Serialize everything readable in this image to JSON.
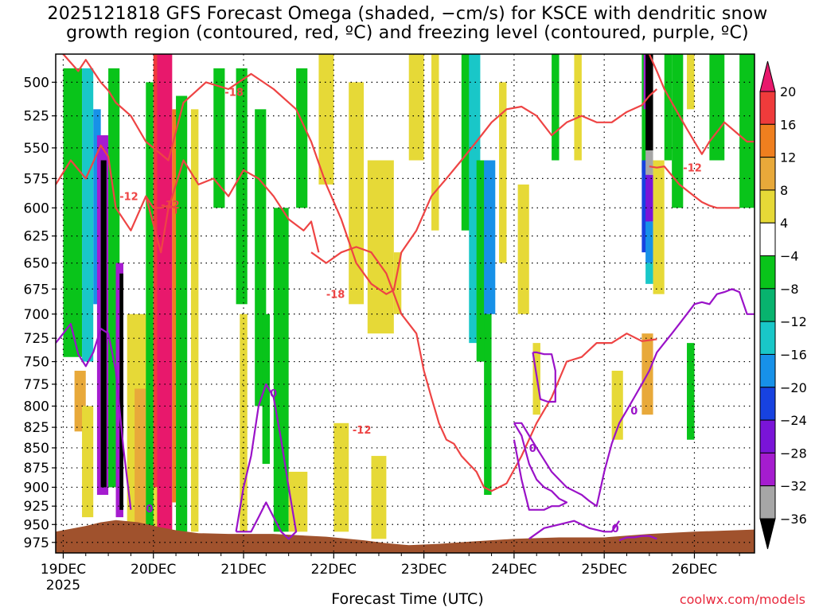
{
  "title": {
    "line1": "2025121818 GFS Forecast Omega (shaded, −cm/s) for KSCE with dendritic snow",
    "line2": "growth region (contoured, red, ºC) and freezing level (contoured, purple, ºC)"
  },
  "xlabel": "Forecast Time (UTC)",
  "credit": "coolwx.com/models",
  "chart_data": {
    "type": "heatmap",
    "title": "2025121818 GFS Forecast Omega (shaded, −cm/s) for KSCE with dendritic snow growth region (contoured, red, ºC) and freezing level (contoured, purple, ºC)",
    "xlabel": "Forecast Time (UTC)",
    "ylabel": "",
    "x_ticks": [
      "19DEC",
      "20DEC",
      "21DEC",
      "22DEC",
      "23DEC",
      "24DEC",
      "25DEC",
      "26DEC"
    ],
    "x_year_label": "2025",
    "x_range_hours": [
      -2,
      184
    ],
    "y_ticks": [
      500,
      525,
      550,
      575,
      600,
      625,
      650,
      675,
      700,
      725,
      750,
      775,
      800,
      825,
      850,
      875,
      900,
      925,
      950,
      975
    ],
    "y_range_hpa": [
      480,
      990
    ],
    "y_log": true,
    "grid": "dotted",
    "colorbar": {
      "levels": [
        -36,
        -32,
        -28,
        -24,
        -20,
        -16,
        -12,
        -8,
        -4,
        4,
        8,
        12,
        16,
        20
      ],
      "labels": [
        "20",
        "16",
        "12",
        "8",
        "4",
        "−4",
        "−8",
        "−12",
        "−16",
        "−20",
        "−24",
        "−28",
        "−32",
        "−36"
      ],
      "colors_top_to_bottom": [
        "#e8186c",
        "#ef3b3b",
        "#ef7f1f",
        "#e8a93a",
        "#e6d937",
        "#ffffff",
        "#09c41a",
        "#08b36e",
        "#19c7c8",
        "#1791e8",
        "#1742e0",
        "#7a14d8",
        "#a51ccf",
        "#a6a6a6",
        "#000000"
      ]
    },
    "omega_cells": [
      {
        "t0": 0,
        "t1": 5,
        "p0": 490,
        "p1": 745,
        "c": "#09c41a"
      },
      {
        "t0": 5,
        "t1": 8,
        "p0": 490,
        "p1": 750,
        "c": "#19c7c8"
      },
      {
        "t0": 8,
        "t1": 10,
        "p0": 520,
        "p1": 690,
        "c": "#1791e8"
      },
      {
        "t0": 9,
        "t1": 12,
        "p0": 540,
        "p1": 910,
        "c": "#a51ccf"
      },
      {
        "t0": 10,
        "t1": 11.5,
        "p0": 560,
        "p1": 900,
        "c": "#000000"
      },
      {
        "t0": 12,
        "t1": 15,
        "p0": 490,
        "p1": 900,
        "c": "#09c41a"
      },
      {
        "t0": 14,
        "t1": 16,
        "p0": 650,
        "p1": 940,
        "c": "#a51ccf"
      },
      {
        "t0": 15,
        "t1": 16,
        "p0": 660,
        "p1": 930,
        "c": "#000000"
      },
      {
        "t0": 3,
        "t1": 6,
        "p0": 760,
        "p1": 830,
        "c": "#e8a93a"
      },
      {
        "t0": 5,
        "t1": 8,
        "p0": 800,
        "p1": 940,
        "c": "#e6d937"
      },
      {
        "t0": 17,
        "t1": 26,
        "p0": 700,
        "p1": 960,
        "c": "#e6d937"
      },
      {
        "t0": 19,
        "t1": 22,
        "p0": 780,
        "p1": 950,
        "c": "#e8a93a"
      },
      {
        "t0": 22,
        "t1": 24,
        "p0": 500,
        "p1": 960,
        "c": "#09c41a"
      },
      {
        "t0": 24,
        "t1": 26,
        "p0": 480,
        "p1": 900,
        "c": "#ef3b3b"
      },
      {
        "t0": 25,
        "t1": 29,
        "p0": 480,
        "p1": 960,
        "c": "#e8186c"
      },
      {
        "t0": 29,
        "t1": 30,
        "p0": 520,
        "p1": 920,
        "c": "#ef7f1f"
      },
      {
        "t0": 30,
        "t1": 33,
        "p0": 510,
        "p1": 960,
        "c": "#09c41a"
      },
      {
        "t0": 34,
        "t1": 36,
        "p0": 520,
        "p1": 960,
        "c": "#e6d937"
      },
      {
        "t0": 40,
        "t1": 43,
        "p0": 490,
        "p1": 600,
        "c": "#09c41a"
      },
      {
        "t0": 46,
        "t1": 49,
        "p0": 490,
        "p1": 690,
        "c": "#09c41a"
      },
      {
        "t0": 47,
        "t1": 49,
        "p0": 700,
        "p1": 960,
        "c": "#e6d937"
      },
      {
        "t0": 51,
        "t1": 54,
        "p0": 520,
        "p1": 800,
        "c": "#09c41a"
      },
      {
        "t0": 53,
        "t1": 55,
        "p0": 700,
        "p1": 870,
        "c": "#09c41a"
      },
      {
        "t0": 56,
        "t1": 60,
        "p0": 600,
        "p1": 960,
        "c": "#09c41a"
      },
      {
        "t0": 60,
        "t1": 65,
        "p0": 880,
        "p1": 960,
        "c": "#e6d937"
      },
      {
        "t0": 62,
        "t1": 65,
        "p0": 490,
        "p1": 600,
        "c": "#09c41a"
      },
      {
        "t0": 68,
        "t1": 72,
        "p0": 480,
        "p1": 580,
        "c": "#e6d937"
      },
      {
        "t0": 72,
        "t1": 76,
        "p0": 820,
        "p1": 960,
        "c": "#e6d937"
      },
      {
        "t0": 76,
        "t1": 80,
        "p0": 500,
        "p1": 690,
        "c": "#e6d937"
      },
      {
        "t0": 81,
        "t1": 88,
        "p0": 560,
        "p1": 720,
        "c": "#e6d937"
      },
      {
        "t0": 82,
        "t1": 86,
        "p0": 860,
        "p1": 970,
        "c": "#e6d937"
      },
      {
        "t0": 88,
        "t1": 90,
        "p0": 640,
        "p1": 700,
        "c": "#e6d937"
      },
      {
        "t0": 92,
        "t1": 96,
        "p0": 480,
        "p1": 560,
        "c": "#e6d937"
      },
      {
        "t0": 98,
        "t1": 100,
        "p0": 480,
        "p1": 620,
        "c": "#e6d937"
      },
      {
        "t0": 106,
        "t1": 109,
        "p0": 480,
        "p1": 620,
        "c": "#09c41a"
      },
      {
        "t0": 108,
        "t1": 111,
        "p0": 480,
        "p1": 730,
        "c": "#19c7c8"
      },
      {
        "t0": 110,
        "t1": 113,
        "p0": 560,
        "p1": 750,
        "c": "#09c41a"
      },
      {
        "t0": 112,
        "t1": 115,
        "p0": 560,
        "p1": 700,
        "c": "#1791e8"
      },
      {
        "t0": 112,
        "t1": 114,
        "p0": 700,
        "p1": 910,
        "c": "#09c41a"
      },
      {
        "t0": 116,
        "t1": 118,
        "p0": 500,
        "p1": 650,
        "c": "#e6d937"
      },
      {
        "t0": 121,
        "t1": 124,
        "p0": 580,
        "p1": 700,
        "c": "#e6d937"
      },
      {
        "t0": 125,
        "t1": 127,
        "p0": 730,
        "p1": 810,
        "c": "#e6d937"
      },
      {
        "t0": 130,
        "t1": 132,
        "p0": 480,
        "p1": 560,
        "c": "#09c41a"
      },
      {
        "t0": 136,
        "t1": 138,
        "p0": 480,
        "p1": 560,
        "c": "#e6d937"
      },
      {
        "t0": 146,
        "t1": 149,
        "p0": 760,
        "p1": 840,
        "c": "#e6d937"
      },
      {
        "t0": 154,
        "t1": 156,
        "p0": 480,
        "p1": 570,
        "c": "#09c41a"
      },
      {
        "t0": 154,
        "t1": 156,
        "p0": 560,
        "p1": 640,
        "c": "#1742e0"
      },
      {
        "t0": 154.5,
        "t1": 156,
        "p0": 480,
        "p1": 520,
        "c": "#a51ccf"
      },
      {
        "t0": 155,
        "t1": 157,
        "p0": 480,
        "p1": 552,
        "c": "#000000"
      },
      {
        "t0": 155,
        "t1": 157,
        "p0": 552,
        "p1": 572,
        "c": "#a6a6a6"
      },
      {
        "t0": 155,
        "t1": 157,
        "p0": 572,
        "p1": 612,
        "c": "#7a14d8"
      },
      {
        "t0": 155,
        "t1": 157,
        "p0": 612,
        "p1": 650,
        "c": "#1791e8"
      },
      {
        "t0": 155,
        "t1": 157,
        "p0": 650,
        "p1": 670,
        "c": "#19c7c8"
      },
      {
        "t0": 154,
        "t1": 157,
        "p0": 720,
        "p1": 810,
        "c": "#e8a93a"
      },
      {
        "t0": 157,
        "t1": 160,
        "p0": 560,
        "p1": 680,
        "c": "#e6d937"
      },
      {
        "t0": 160,
        "t1": 162,
        "p0": 480,
        "p1": 560,
        "c": "#09c41a"
      },
      {
        "t0": 162,
        "t1": 165,
        "p0": 480,
        "p1": 600,
        "c": "#09c41a"
      },
      {
        "t0": 166,
        "t1": 168,
        "p0": 730,
        "p1": 840,
        "c": "#09c41a"
      },
      {
        "t0": 166,
        "t1": 168,
        "p0": 480,
        "p1": 520,
        "c": "#e6d937"
      },
      {
        "t0": 172,
        "t1": 176,
        "p0": 480,
        "p1": 560,
        "c": "#09c41a"
      },
      {
        "t0": 180,
        "t1": 184,
        "p0": 480,
        "p1": 600,
        "c": "#09c41a"
      }
    ],
    "terrain": {
      "color": "#a0522d",
      "t": [
        -2,
        0,
        6,
        10,
        14,
        20,
        26,
        30,
        36,
        44,
        56,
        70,
        80,
        86,
        92,
        100,
        108,
        120,
        132,
        144,
        156,
        168,
        184
      ],
      "p": [
        960,
        958,
        952,
        947,
        944,
        947,
        954,
        958,
        962,
        963,
        963,
        967,
        972,
        976,
        979,
        977,
        974,
        970,
        968,
        968,
        963,
        960,
        957
      ]
    },
    "contours": [
      {
        "kind": "dgz",
        "color": "#ee4444",
        "level": -12,
        "t": [
          -2,
          2,
          6,
          10,
          12,
          14,
          18,
          22,
          26,
          28,
          30,
          32,
          36,
          40,
          44,
          48,
          52,
          56,
          60,
          64,
          66,
          68
        ],
        "p": [
          580,
          560,
          575,
          548,
          557,
          600,
          620,
          590,
          640,
          600,
          580,
          560,
          580,
          575,
          590,
          568,
          575,
          590,
          610,
          620,
          612,
          640
        ],
        "label_t": 15,
        "label_p": 590,
        "label": "-12"
      },
      {
        "kind": "dgz",
        "color": "#ee4444",
        "level": -12,
        "t": [
          22,
          24,
          26,
          28,
          30,
          30
        ],
        "p": [
          590,
          600,
          600,
          598,
          600,
          605
        ],
        "label_t": 26,
        "label_p": 597,
        "label": "-12"
      },
      {
        "kind": "dgz",
        "color": "#ee4444",
        "level": -12,
        "t": [
          66,
          70,
          74,
          78,
          82,
          86,
          90,
          94,
          96,
          98,
          100,
          102,
          104,
          106,
          108,
          110,
          112,
          114,
          118,
          122,
          126,
          130,
          134,
          138,
          142,
          146,
          150,
          154,
          156,
          158
        ],
        "p": [
          640,
          650,
          640,
          635,
          640,
          660,
          700,
          720,
          760,
          790,
          820,
          840,
          845,
          860,
          870,
          880,
          900,
          905,
          895,
          860,
          820,
          790,
          750,
          745,
          730,
          730,
          720,
          728,
          727,
          726
        ],
        "label_t": 77,
        "label_p": 828,
        "label": "-12"
      },
      {
        "kind": "dgz",
        "color": "#ee4444",
        "level": -18,
        "t": [
          0,
          4,
          6,
          10,
          12,
          14,
          18,
          22,
          28,
          32,
          38,
          44,
          50,
          56,
          62,
          66,
          70,
          74,
          78,
          82,
          86,
          88,
          90,
          94,
          98,
          102,
          106,
          110,
          114,
          118,
          122,
          126,
          130,
          134,
          138,
          142,
          146,
          150,
          154,
          156,
          158
        ],
        "p": [
          480,
          492,
          484,
          500,
          506,
          515,
          525,
          545,
          560,
          515,
          500,
          505,
          494,
          505,
          520,
          545,
          580,
          610,
          650,
          670,
          680,
          676,
          640,
          620,
          590,
          575,
          560,
          545,
          530,
          520,
          518,
          525,
          540,
          530,
          525,
          530,
          530,
          522,
          517,
          510,
          505
        ],
        "label_t": 43,
        "label_p": 507,
        "label": "-18"
      },
      {
        "kind": "dgz",
        "color": "#ee4444",
        "level": -18,
        "t": [
          156,
          158,
          160,
          163,
          166,
          168,
          170,
          172,
          176,
          180,
          182,
          184
        ],
        "p": [
          480,
          492,
          505,
          520,
          535,
          545,
          555,
          545,
          530,
          540,
          545,
          545
        ],
        "label_t": 70,
        "label_p": 680,
        "label": "-18"
      },
      {
        "kind": "dgz",
        "color": "#ee4444",
        "level": -12,
        "t": [
          156,
          158,
          160,
          164,
          168,
          170,
          172,
          174,
          176,
          178,
          180
        ],
        "p": [
          565,
          566,
          565,
          580,
          590,
          595,
          598,
          600,
          600,
          600,
          600
        ],
        "label_t": 165,
        "label_p": 566,
        "label": "-12"
      },
      {
        "kind": "fzl",
        "color": "#9a12c8",
        "level": 0,
        "t": [
          -2,
          0,
          2,
          4,
          6,
          8,
          10,
          12,
          14,
          16,
          18
        ],
        "p": [
          730,
          720,
          710,
          742,
          755,
          740,
          715,
          720,
          760,
          850,
          930
        ],
        "label_t": 22,
        "label_p": 928,
        "label": "0"
      },
      {
        "kind": "fzl",
        "color": "#9a12c8",
        "level": 0,
        "t": [
          46,
          48,
          50,
          52,
          54,
          56,
          58,
          60,
          62,
          60,
          58,
          56,
          54,
          52,
          50,
          48,
          46
        ],
        "p": [
          960,
          900,
          860,
          800,
          775,
          790,
          840,
          900,
          960,
          970,
          960,
          940,
          920,
          940,
          960,
          960,
          960
        ],
        "label_t": 55,
        "label_p": 785,
        "label": "0"
      },
      {
        "kind": "fzl",
        "color": "#9a12c8",
        "level": 0,
        "t": [
          125,
          126,
          128,
          130,
          131,
          131,
          129,
          127,
          125
        ],
        "p": [
          740,
          740,
          742,
          742,
          760,
          795,
          795,
          792,
          740
        ],
        "label_t": 128,
        "label_p": 800,
        "label": ""
      },
      {
        "kind": "fzl",
        "color": "#9a12c8",
        "level": 0,
        "t": [
          120,
          122,
          124,
          126,
          128,
          130,
          132,
          134,
          136,
          138,
          140,
          142,
          144,
          146,
          148,
          150,
          152,
          154,
          156,
          158,
          160,
          162,
          164,
          166,
          168,
          170,
          172,
          174,
          176,
          178,
          180,
          182,
          184
        ],
        "p": [
          820,
          820,
          835,
          850,
          865,
          880,
          890,
          900,
          905,
          910,
          918,
          925,
          880,
          845,
          820,
          805,
          790,
          775,
          760,
          740,
          730,
          720,
          710,
          700,
          690,
          688,
          690,
          680,
          678,
          675,
          678,
          700,
          700
        ],
        "label_t": 151,
        "label_p": 805,
        "label": "0"
      },
      {
        "kind": "fzl",
        "color": "#9a12c8",
        "level": 0,
        "t": [
          120,
          122,
          124,
          126,
          128,
          130,
          132,
          134,
          132,
          130,
          128,
          126,
          124,
          122,
          120
        ],
        "p": [
          820,
          835,
          870,
          890,
          900,
          905,
          915,
          920,
          925,
          925,
          930,
          930,
          930,
          890,
          840
        ],
        "label_t": 124,
        "label_p": 850,
        "label": "0"
      },
      {
        "kind": "fzl",
        "color": "#9a12c8",
        "level": 0,
        "t": [
          124,
          128,
          132,
          136,
          140,
          144,
          146,
          148
        ],
        "p": [
          970,
          955,
          950,
          945,
          955,
          960,
          960,
          945
        ],
        "label_t": 146,
        "label_p": 955,
        "label": "0"
      },
      {
        "kind": "fzl",
        "color": "#9a12c8",
        "level": 0,
        "t": [
          148,
          150,
          152,
          154,
          156,
          158
        ],
        "p": [
          972,
          968,
          968,
          966,
          966,
          970
        ],
        "label_t": 152,
        "label_p": 965,
        "label": ""
      }
    ]
  }
}
